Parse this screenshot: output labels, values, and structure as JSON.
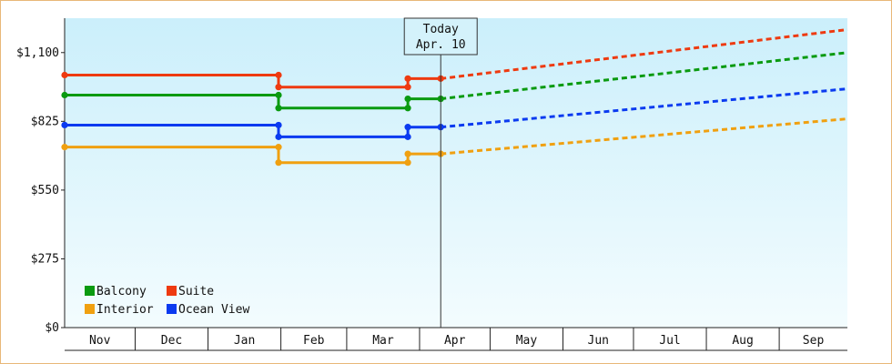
{
  "chart_data": {
    "type": "line",
    "x_unit": "date",
    "ylim": [
      0,
      1237.5
    ],
    "xlim": [
      "2024-11-01",
      "2025-09-30"
    ],
    "y_ticks": [
      {
        "value": 0,
        "label": "$0"
      },
      {
        "value": 275,
        "label": "$275"
      },
      {
        "value": 550,
        "label": "$550"
      },
      {
        "value": 825,
        "label": "$825"
      },
      {
        "value": 1100,
        "label": "$1,100"
      }
    ],
    "x_ticks": [
      {
        "label": "Nov",
        "start": "2024-11-01",
        "end": "2024-12-01"
      },
      {
        "label": "Dec",
        "start": "2024-12-01",
        "end": "2025-01-01"
      },
      {
        "label": "Jan",
        "start": "2025-01-01",
        "end": "2025-02-01"
      },
      {
        "label": "Feb",
        "start": "2025-02-01",
        "end": "2025-03-01"
      },
      {
        "label": "Mar",
        "start": "2025-03-01",
        "end": "2025-04-01"
      },
      {
        "label": "Apr",
        "start": "2025-04-01",
        "end": "2025-05-01"
      },
      {
        "label": "May",
        "start": "2025-05-01",
        "end": "2025-06-01"
      },
      {
        "label": "Jun",
        "start": "2025-06-01",
        "end": "2025-07-01"
      },
      {
        "label": "Jul",
        "start": "2025-07-01",
        "end": "2025-08-01"
      },
      {
        "label": "Aug",
        "start": "2025-08-01",
        "end": "2025-09-01"
      },
      {
        "label": "Sep",
        "start": "2025-09-01",
        "end": "2025-09-30"
      }
    ],
    "today": {
      "date": "2025-04-10",
      "line1": "Today",
      "line2": "Apr. 10"
    },
    "series": [
      {
        "name": "Suite",
        "color": "#ee3a10",
        "history": [
          [
            "2024-11-01",
            1010
          ],
          [
            "2025-01-31",
            1010
          ],
          [
            "2025-01-31",
            962
          ],
          [
            "2025-03-27",
            962
          ],
          [
            "2025-03-27",
            996
          ],
          [
            "2025-04-10",
            996
          ]
        ],
        "projection": [
          [
            "2025-04-10",
            996
          ],
          [
            "2025-09-30",
            1192
          ]
        ]
      },
      {
        "name": "Balcony",
        "color": "#0a9a10",
        "history": [
          [
            "2024-11-01",
            930
          ],
          [
            "2025-01-31",
            930
          ],
          [
            "2025-01-31",
            878
          ],
          [
            "2025-03-27",
            878
          ],
          [
            "2025-03-27",
            915
          ],
          [
            "2025-04-10",
            915
          ]
        ],
        "projection": [
          [
            "2025-04-10",
            915
          ],
          [
            "2025-09-30",
            1100
          ]
        ]
      },
      {
        "name": "Ocean View",
        "color": "#0a3af0",
        "history": [
          [
            "2024-11-01",
            810
          ],
          [
            "2025-01-31",
            810
          ],
          [
            "2025-01-31",
            763
          ],
          [
            "2025-03-27",
            763
          ],
          [
            "2025-03-27",
            802
          ],
          [
            "2025-04-10",
            802
          ]
        ],
        "projection": [
          [
            "2025-04-10",
            802
          ],
          [
            "2025-09-30",
            955
          ]
        ]
      },
      {
        "name": "Interior",
        "color": "#f0a010",
        "history": [
          [
            "2024-11-01",
            722
          ],
          [
            "2025-01-31",
            722
          ],
          [
            "2025-01-31",
            660
          ],
          [
            "2025-03-27",
            660
          ],
          [
            "2025-03-27",
            695
          ],
          [
            "2025-04-10",
            695
          ]
        ],
        "projection": [
          [
            "2025-04-10",
            695
          ],
          [
            "2025-09-30",
            835
          ]
        ]
      }
    ],
    "legend_position": "bottom-left",
    "legend": [
      {
        "name": "Balcony",
        "color": "#0a9a10"
      },
      {
        "name": "Suite",
        "color": "#ee3a10"
      },
      {
        "name": "Interior",
        "color": "#f0a010"
      },
      {
        "name": "Ocean View",
        "color": "#0a3af0"
      }
    ]
  }
}
